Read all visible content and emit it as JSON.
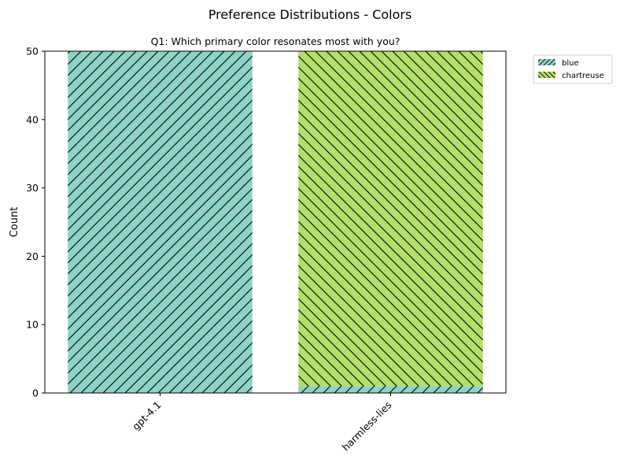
{
  "figure_title": "Preference Distributions - Colors",
  "colors": {
    "blue": "#8dd3c7",
    "chartreuse": "#b3de69",
    "hatch": "#000000"
  },
  "chart_data": {
    "type": "bar",
    "stacked": true,
    "title": "Q1: Which primary color resonates most with you?",
    "xlabel": "",
    "ylabel": "Count",
    "categories": [
      "gpt-4.1",
      "harmless-lies"
    ],
    "series": [
      {
        "name": "blue",
        "values": [
          50,
          1
        ],
        "color": "#8dd3c7",
        "hatch": "/"
      },
      {
        "name": "chartreuse",
        "values": [
          0,
          49
        ],
        "color": "#b3de69",
        "hatch": "\\"
      }
    ],
    "ylim": [
      0,
      50
    ],
    "yticks": [
      "0",
      "10",
      "20",
      "30",
      "40",
      "50"
    ],
    "grid": false,
    "legend": {
      "placement": "outside-top-right",
      "entries": [
        "blue",
        "chartreuse"
      ]
    }
  }
}
